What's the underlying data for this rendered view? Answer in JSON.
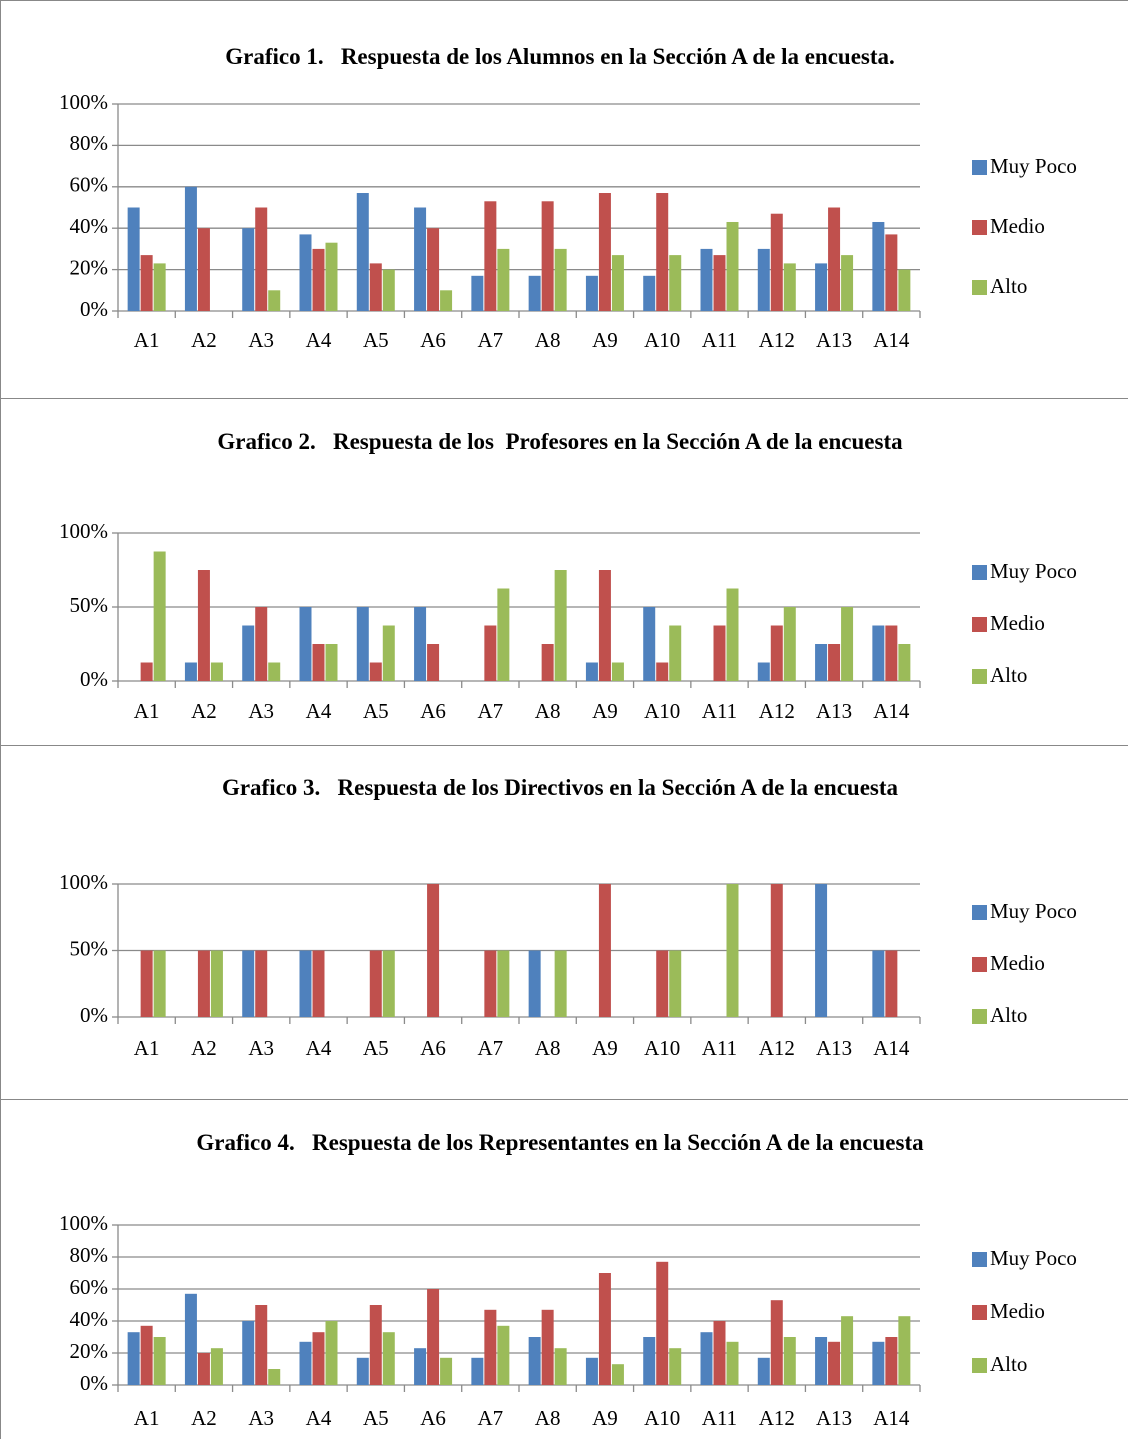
{
  "chart_data": [
    {
      "type": "bar",
      "title": "Grafico 1.   Respuesta de los Alumnos en la Sección A de la encuesta.",
      "categories": [
        "A1",
        "A2",
        "A3",
        "A4",
        "A5",
        "A6",
        "A7",
        "A8",
        "A9",
        "A10",
        "A11",
        "A12",
        "A13",
        "A14"
      ],
      "series": [
        {
          "name": "Muy Poco",
          "color": "#4f81bd",
          "values": [
            50,
            60,
            40,
            37,
            57,
            50,
            17,
            17,
            17,
            17,
            30,
            30,
            23,
            43
          ]
        },
        {
          "name": "Medio",
          "color": "#c0504d",
          "values": [
            27,
            40,
            50,
            30,
            23,
            40,
            53,
            53,
            57,
            57,
            27,
            47,
            50,
            37
          ]
        },
        {
          "name": "Alto",
          "color": "#9bbb59",
          "values": [
            23,
            0,
            10,
            33,
            20,
            10,
            30,
            30,
            27,
            27,
            43,
            23,
            27,
            20
          ]
        }
      ],
      "ylim": [
        0,
        100
      ],
      "yticks": [
        {
          "value": 0,
          "label": "0%"
        },
        {
          "value": 20,
          "label": "20%"
        },
        {
          "value": 40,
          "label": "40%"
        },
        {
          "value": 60,
          "label": "60%"
        },
        {
          "value": 80,
          "label": "80%"
        },
        {
          "value": 100,
          "label": "100%"
        }
      ],
      "grid": true,
      "legend": "right"
    },
    {
      "type": "bar",
      "title": "Grafico 2.   Respuesta de los  Profesores en la Sección A de la encuesta",
      "categories": [
        "A1",
        "A2",
        "A3",
        "A4",
        "A5",
        "A6",
        "A7",
        "A8",
        "A9",
        "A10",
        "A11",
        "A12",
        "A13",
        "A14"
      ],
      "series": [
        {
          "name": "Muy Poco",
          "color": "#4f81bd",
          "values": [
            0,
            12.5,
            37.5,
            50,
            50,
            50,
            0,
            0,
            12.5,
            50,
            0,
            12.5,
            25,
            37.5
          ]
        },
        {
          "name": "Medio",
          "color": "#c0504d",
          "values": [
            12.5,
            75,
            50,
            25,
            12.5,
            25,
            37.5,
            25,
            75,
            12.5,
            37.5,
            37.5,
            25,
            37.5
          ]
        },
        {
          "name": "Alto",
          "color": "#9bbb59",
          "values": [
            87.5,
            12.5,
            12.5,
            25,
            37.5,
            0,
            62.5,
            75,
            12.5,
            37.5,
            62.5,
            50,
            50,
            25
          ]
        }
      ],
      "ylim": [
        0,
        100
      ],
      "yticks": [
        {
          "value": 0,
          "label": "0%"
        },
        {
          "value": 50,
          "label": "50%"
        },
        {
          "value": 100,
          "label": "100%"
        }
      ],
      "grid": true,
      "legend": "right"
    },
    {
      "type": "bar",
      "title": "Grafico 3.   Respuesta de los Directivos en la Sección A de la encuesta",
      "categories": [
        "A1",
        "A2",
        "A3",
        "A4",
        "A5",
        "A6",
        "A7",
        "A8",
        "A9",
        "A10",
        "A11",
        "A12",
        "A13",
        "A14"
      ],
      "series": [
        {
          "name": "Muy Poco",
          "color": "#4f81bd",
          "values": [
            0,
            0,
            50,
            50,
            0,
            0,
            0,
            50,
            0,
            0,
            0,
            0,
            100,
            50
          ]
        },
        {
          "name": "Medio",
          "color": "#c0504d",
          "values": [
            50,
            50,
            50,
            50,
            50,
            100,
            50,
            0,
            100,
            50,
            0,
            100,
            0,
            50
          ]
        },
        {
          "name": "Alto",
          "color": "#9bbb59",
          "values": [
            50,
            50,
            0,
            0,
            50,
            0,
            50,
            50,
            0,
            50,
            100,
            0,
            0,
            0
          ]
        }
      ],
      "ylim": [
        0,
        100
      ],
      "yticks": [
        {
          "value": 0,
          "label": "0%"
        },
        {
          "value": 50,
          "label": "50%"
        },
        {
          "value": 100,
          "label": "100%"
        }
      ],
      "grid": true,
      "legend": "right"
    },
    {
      "type": "bar",
      "title": "Grafico 4.   Respuesta de los Representantes en la Sección A de la encuesta",
      "categories": [
        "A1",
        "A2",
        "A3",
        "A4",
        "A5",
        "A6",
        "A7",
        "A8",
        "A9",
        "A10",
        "A11",
        "A12",
        "A13",
        "A14"
      ],
      "series": [
        {
          "name": "Muy Poco",
          "color": "#4f81bd",
          "values": [
            33,
            57,
            40,
            27,
            17,
            23,
            17,
            30,
            17,
            30,
            33,
            17,
            30,
            27
          ]
        },
        {
          "name": "Medio",
          "color": "#c0504d",
          "values": [
            37,
            20,
            50,
            33,
            50,
            60,
            47,
            47,
            70,
            77,
            40,
            53,
            27,
            30
          ]
        },
        {
          "name": "Alto",
          "color": "#9bbb59",
          "values": [
            30,
            23,
            10,
            40,
            33,
            17,
            37,
            23,
            13,
            23,
            27,
            30,
            43,
            43
          ]
        }
      ],
      "ylim": [
        0,
        100
      ],
      "yticks": [
        {
          "value": 0,
          "label": "0%"
        },
        {
          "value": 20,
          "label": "20%"
        },
        {
          "value": 40,
          "label": "40%"
        },
        {
          "value": 60,
          "label": "60%"
        },
        {
          "value": 80,
          "label": "80%"
        },
        {
          "value": 100,
          "label": "100%"
        }
      ],
      "grid": true,
      "legend": "right"
    }
  ]
}
